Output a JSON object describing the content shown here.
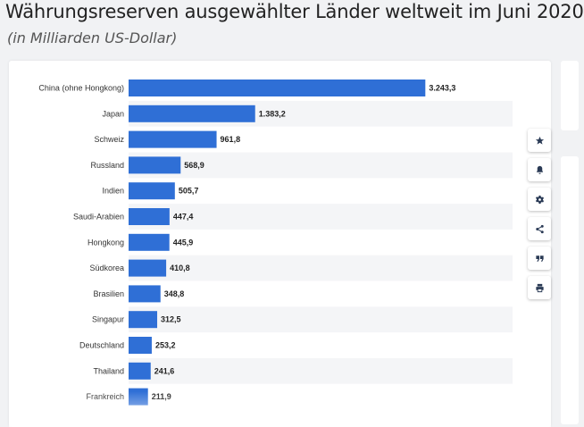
{
  "header": {
    "title": "Währungsreserven ausgewählter Länder weltweit im Juni 2020",
    "subtitle": "(in Milliarden US-Dollar)"
  },
  "toolbar": {
    "buttons": [
      {
        "icon": "star-icon"
      },
      {
        "icon": "bell-icon"
      },
      {
        "icon": "gear-icon"
      },
      {
        "icon": "share-icon"
      },
      {
        "icon": "quote-icon"
      },
      {
        "icon": "print-icon"
      }
    ]
  },
  "colors": {
    "bar": "#2f6fd6",
    "band": "#f4f5f7"
  },
  "chart_data": {
    "type": "bar",
    "orientation": "horizontal",
    "categories": [
      "China (ohne Hongkong)",
      "Japan",
      "Schweiz",
      "Russland",
      "Indien",
      "Saudi-Arabien",
      "Hongkong",
      "Südkorea",
      "Brasilien",
      "Singapur",
      "Deutschland",
      "Thailand",
      "Frankreich"
    ],
    "values": [
      3243.3,
      1383.2,
      961.8,
      568.9,
      505.7,
      447.4,
      445.9,
      410.8,
      348.8,
      312.5,
      253.2,
      241.6,
      211.9
    ],
    "value_labels": [
      "3.243,3",
      "1.383,2",
      "961,8",
      "568,9",
      "505,7",
      "447,4",
      "445,9",
      "410,8",
      "348,8",
      "312,5",
      "253,2",
      "241,6",
      "211,9"
    ],
    "xlim": [
      0,
      3250
    ],
    "grid": false
  }
}
